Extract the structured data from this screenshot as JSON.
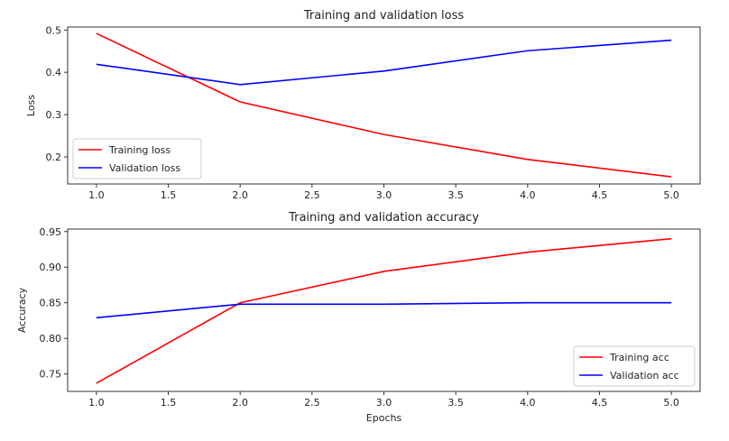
{
  "chart_data": [
    {
      "type": "line",
      "title": "Training and validation loss",
      "xlabel": "",
      "ylabel": "Loss",
      "x": [
        1,
        2,
        3,
        4,
        5
      ],
      "xlim": [
        0.8,
        5.2
      ],
      "ylim": [
        0.136,
        0.507
      ],
      "xticks": [
        "1.0",
        "1.5",
        "2.0",
        "2.5",
        "3.0",
        "3.5",
        "4.0",
        "4.5",
        "5.0"
      ],
      "yticks": [
        "0.2",
        "0.3",
        "0.4",
        "0.5"
      ],
      "legend": "lower-left",
      "series": [
        {
          "name": "Training loss",
          "color": "#ff0000",
          "values": [
            0.492,
            0.33,
            0.253,
            0.194,
            0.153
          ]
        },
        {
          "name": "Validation loss",
          "color": "#0000ff",
          "values": [
            0.419,
            0.371,
            0.403,
            0.451,
            0.476
          ]
        }
      ]
    },
    {
      "type": "line",
      "title": "Training and validation accuracy",
      "xlabel": "Epochs",
      "ylabel": "Accuracy",
      "x": [
        1,
        2,
        3,
        4,
        5
      ],
      "xlim": [
        0.8,
        5.2
      ],
      "ylim": [
        0.7255,
        0.9535
      ],
      "xticks": [
        "1.0",
        "1.5",
        "2.0",
        "2.5",
        "3.0",
        "3.5",
        "4.0",
        "4.5",
        "5.0"
      ],
      "yticks": [
        "0.75",
        "0.80",
        "0.85",
        "0.90",
        "0.95"
      ],
      "legend": "lower-right",
      "series": [
        {
          "name": "Training acc",
          "color": "#ff0000",
          "values": [
            0.737,
            0.85,
            0.894,
            0.921,
            0.94
          ]
        },
        {
          "name": "Validation acc",
          "color": "#0000ff",
          "values": [
            0.829,
            0.848,
            0.848,
            0.85,
            0.85
          ]
        }
      ]
    }
  ]
}
